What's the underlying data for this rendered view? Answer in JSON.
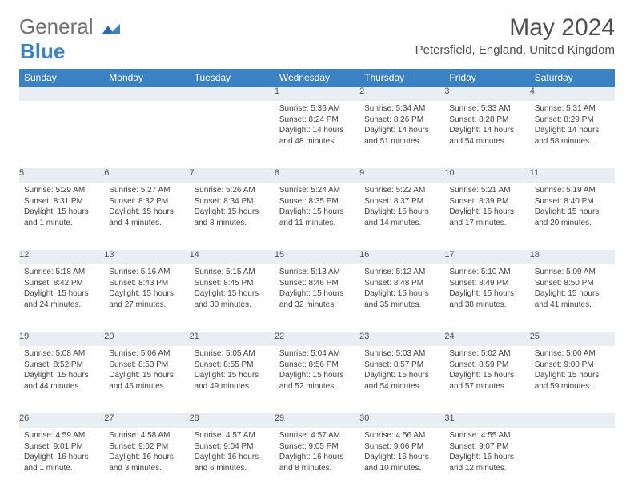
{
  "brand": {
    "part1": "General",
    "part2": "Blue"
  },
  "title": "May 2024",
  "location": "Petersfield, England, United Kingdom",
  "colors": {
    "header_bg": "#3b82c4",
    "header_fg": "#ffffff",
    "daynum_bg": "#e8eef3",
    "border": "#3b5a7a",
    "text": "#444444",
    "title": "#505050"
  },
  "weekdays": [
    "Sunday",
    "Monday",
    "Tuesday",
    "Wednesday",
    "Thursday",
    "Friday",
    "Saturday"
  ],
  "weeks": [
    [
      null,
      null,
      null,
      {
        "n": "1",
        "sr": "5:36 AM",
        "ss": "8:24 PM",
        "dl": "14 hours and 48 minutes."
      },
      {
        "n": "2",
        "sr": "5:34 AM",
        "ss": "8:26 PM",
        "dl": "14 hours and 51 minutes."
      },
      {
        "n": "3",
        "sr": "5:33 AM",
        "ss": "8:28 PM",
        "dl": "14 hours and 54 minutes."
      },
      {
        "n": "4",
        "sr": "5:31 AM",
        "ss": "8:29 PM",
        "dl": "14 hours and 58 minutes."
      }
    ],
    [
      {
        "n": "5",
        "sr": "5:29 AM",
        "ss": "8:31 PM",
        "dl": "15 hours and 1 minute."
      },
      {
        "n": "6",
        "sr": "5:27 AM",
        "ss": "8:32 PM",
        "dl": "15 hours and 4 minutes."
      },
      {
        "n": "7",
        "sr": "5:26 AM",
        "ss": "8:34 PM",
        "dl": "15 hours and 8 minutes."
      },
      {
        "n": "8",
        "sr": "5:24 AM",
        "ss": "8:35 PM",
        "dl": "15 hours and 11 minutes."
      },
      {
        "n": "9",
        "sr": "5:22 AM",
        "ss": "8:37 PM",
        "dl": "15 hours and 14 minutes."
      },
      {
        "n": "10",
        "sr": "5:21 AM",
        "ss": "8:39 PM",
        "dl": "15 hours and 17 minutes."
      },
      {
        "n": "11",
        "sr": "5:19 AM",
        "ss": "8:40 PM",
        "dl": "15 hours and 20 minutes."
      }
    ],
    [
      {
        "n": "12",
        "sr": "5:18 AM",
        "ss": "8:42 PM",
        "dl": "15 hours and 24 minutes."
      },
      {
        "n": "13",
        "sr": "5:16 AM",
        "ss": "8:43 PM",
        "dl": "15 hours and 27 minutes."
      },
      {
        "n": "14",
        "sr": "5:15 AM",
        "ss": "8:45 PM",
        "dl": "15 hours and 30 minutes."
      },
      {
        "n": "15",
        "sr": "5:13 AM",
        "ss": "8:46 PM",
        "dl": "15 hours and 32 minutes."
      },
      {
        "n": "16",
        "sr": "5:12 AM",
        "ss": "8:48 PM",
        "dl": "15 hours and 35 minutes."
      },
      {
        "n": "17",
        "sr": "5:10 AM",
        "ss": "8:49 PM",
        "dl": "15 hours and 38 minutes."
      },
      {
        "n": "18",
        "sr": "5:09 AM",
        "ss": "8:50 PM",
        "dl": "15 hours and 41 minutes."
      }
    ],
    [
      {
        "n": "19",
        "sr": "5:08 AM",
        "ss": "8:52 PM",
        "dl": "15 hours and 44 minutes."
      },
      {
        "n": "20",
        "sr": "5:06 AM",
        "ss": "8:53 PM",
        "dl": "15 hours and 46 minutes."
      },
      {
        "n": "21",
        "sr": "5:05 AM",
        "ss": "8:55 PM",
        "dl": "15 hours and 49 minutes."
      },
      {
        "n": "22",
        "sr": "5:04 AM",
        "ss": "8:56 PM",
        "dl": "15 hours and 52 minutes."
      },
      {
        "n": "23",
        "sr": "5:03 AM",
        "ss": "8:57 PM",
        "dl": "15 hours and 54 minutes."
      },
      {
        "n": "24",
        "sr": "5:02 AM",
        "ss": "8:59 PM",
        "dl": "15 hours and 57 minutes."
      },
      {
        "n": "25",
        "sr": "5:00 AM",
        "ss": "9:00 PM",
        "dl": "15 hours and 59 minutes."
      }
    ],
    [
      {
        "n": "26",
        "sr": "4:59 AM",
        "ss": "9:01 PM",
        "dl": "16 hours and 1 minute."
      },
      {
        "n": "27",
        "sr": "4:58 AM",
        "ss": "9:02 PM",
        "dl": "16 hours and 3 minutes."
      },
      {
        "n": "28",
        "sr": "4:57 AM",
        "ss": "9:04 PM",
        "dl": "16 hours and 6 minutes."
      },
      {
        "n": "29",
        "sr": "4:57 AM",
        "ss": "9:05 PM",
        "dl": "16 hours and 8 minutes."
      },
      {
        "n": "30",
        "sr": "4:56 AM",
        "ss": "9:06 PM",
        "dl": "16 hours and 10 minutes."
      },
      {
        "n": "31",
        "sr": "4:55 AM",
        "ss": "9:07 PM",
        "dl": "16 hours and 12 minutes."
      },
      null
    ]
  ],
  "labels": {
    "sunrise": "Sunrise:",
    "sunset": "Sunset:",
    "daylight": "Daylight:"
  }
}
